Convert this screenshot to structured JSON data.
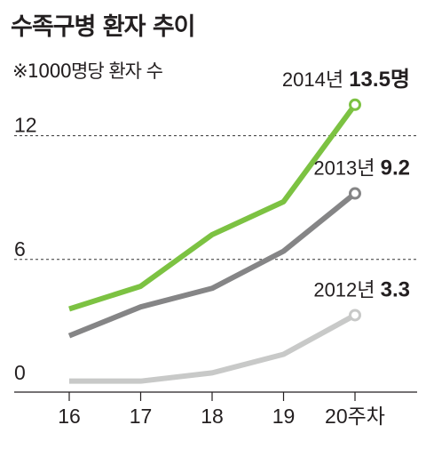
{
  "title": "수족구병 환자 추이",
  "subtitle": "※1000명당 환자 수",
  "chart_data": {
    "type": "line",
    "title": "수족구병 환자 추이",
    "subtitle": "※1000명당 환자 수",
    "x": [
      16,
      17,
      18,
      19,
      20
    ],
    "x_tick_labels": [
      "16",
      "17",
      "18",
      "19",
      "20주차"
    ],
    "y_tick_labels": [
      "0",
      "6",
      "12"
    ],
    "ylim": [
      0,
      13.5
    ],
    "grid": "dashed lines at 6 and 12",
    "series": [
      {
        "name": "2012년",
        "label_value": "3.3",
        "color": "#c8c9c8",
        "values": [
          0.1,
          0.1,
          0.5,
          1.4,
          3.3
        ]
      },
      {
        "name": "2013년",
        "label_value": "9.2",
        "color": "#858586",
        "values": [
          2.3,
          3.7,
          4.6,
          6.4,
          9.2
        ]
      },
      {
        "name": "2014년",
        "label_value": "13.5명",
        "color": "#7cc242",
        "values": [
          3.6,
          4.7,
          7.2,
          8.8,
          13.5
        ]
      }
    ]
  }
}
